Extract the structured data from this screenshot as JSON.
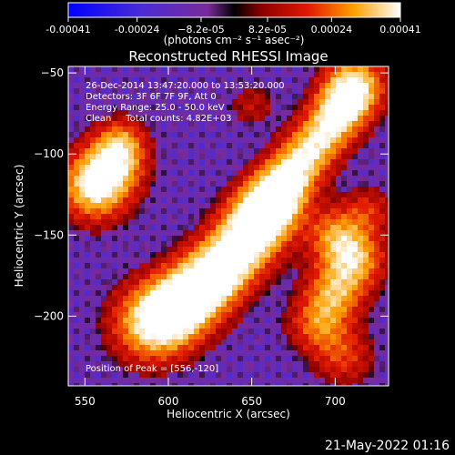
{
  "chart_data": {
    "type": "heatmap",
    "title": "Reconstructed RHESSI Image",
    "xlabel": "Heliocentric X (arcsec)",
    "ylabel": "Heliocentric Y (arcsec)",
    "xlim": [
      540,
      732
    ],
    "ylim": [
      -243,
      -46
    ],
    "x_ticks": [
      550,
      600,
      650,
      700
    ],
    "y_ticks": [
      -50,
      -100,
      -150,
      -200
    ],
    "colorbar": {
      "min": -0.00041,
      "max": 0.00041,
      "tick_values": [
        -0.00041,
        -0.00024,
        -8.2e-05,
        8.2e-05,
        0.00024,
        0.00041
      ],
      "tick_labels": [
        "-0.00041",
        "-0.00024",
        "−8.2e-05",
        "8.2e-05",
        "0.00024",
        "0.00041"
      ],
      "units_label": "(photons cm⁻² s⁻¹ asec⁻²)"
    },
    "colors": {
      "neg_low": "#0000ff",
      "neg_mid": "#8030c8",
      "zero": "#000000",
      "pos_low": "#b00000",
      "pos_mid": "#ff6000",
      "pos_high": "#ffff80",
      "max": "#ffffff"
    },
    "annotations": [
      "26-Dec-2014 13:47:20.000 to 13:53:20.000",
      "Detectors: 3F 6F 7F 9F, Att 0",
      "Energy Range: 25.0 - 50.0 keV",
      "Clean     Total counts: 4.82E+03"
    ],
    "peak": {
      "label": "Position of Peak = [556,-120]",
      "x": 556,
      "y": -120
    }
  },
  "footer": {
    "timestamp": "21-May-2022 01:16"
  }
}
